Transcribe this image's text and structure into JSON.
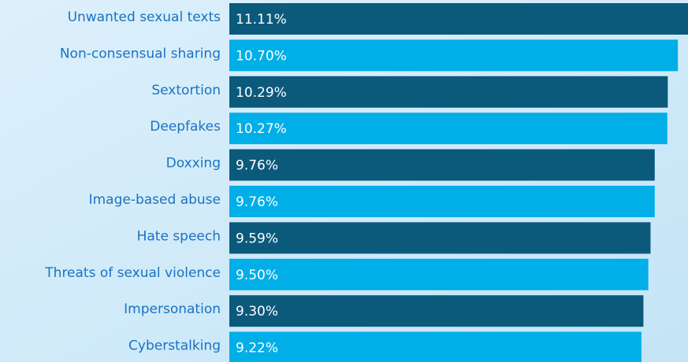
{
  "chart_data": {
    "type": "bar",
    "orientation": "horizontal",
    "categories": [
      "Unwanted sexual texts",
      "Non-consensual sharing",
      "Sextortion",
      "Deepfakes",
      "Doxxing",
      "Image-based abuse",
      "Hate speech",
      "Threats of sexual violence",
      "Impersonation",
      "Cyberstalking"
    ],
    "values": [
      11.11,
      10.7,
      10.29,
      10.27,
      9.76,
      9.76,
      9.59,
      9.5,
      9.3,
      9.22
    ],
    "value_labels": [
      "11.11%",
      "10.70%",
      "10.29%",
      "10.27%",
      "9.76%",
      "9.76%",
      "9.59%",
      "9.50%",
      "9.30%",
      "9.22%"
    ],
    "colors": [
      "#0b5a7c",
      "#00aee8",
      "#0b5a7c",
      "#00aee8",
      "#0b5a7c",
      "#00aee8",
      "#0b5a7c",
      "#00aee8",
      "#0b5a7c",
      "#00aee8"
    ],
    "xlim": [
      -7.5,
      11.11
    ]
  }
}
